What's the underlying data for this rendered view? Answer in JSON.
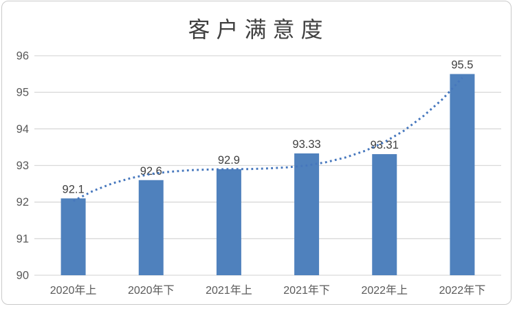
{
  "chart_data": {
    "type": "bar",
    "title": "客户满意度",
    "categories": [
      "2020年上",
      "2020年下",
      "2021年上",
      "2021年下",
      "2022年上",
      "2022年下"
    ],
    "values": [
      92.1,
      92.6,
      92.9,
      93.33,
      93.31,
      95.5
    ],
    "value_labels": [
      "92.1",
      "92.6",
      "92.9",
      "93.33",
      "93.31",
      "95.5"
    ],
    "y_ticks": [
      96,
      95,
      94,
      93,
      92,
      91,
      90
    ],
    "ylim": [
      90,
      96
    ],
    "xlabel": "",
    "ylabel": "",
    "grid": "horizontal",
    "legend": "none",
    "trendline": {
      "type": "polynomial-order-3",
      "style": "dotted",
      "x_start_category": 0,
      "x_end_category": 5,
      "sample_values": [
        92.03,
        92.3,
        92.51,
        92.66,
        92.77,
        92.83,
        92.87,
        92.89,
        92.9,
        92.9,
        92.92,
        92.95,
        93.0,
        93.09,
        93.22,
        93.4,
        93.64,
        93.95,
        94.35,
        94.82,
        95.4
      ]
    },
    "colors": {
      "bar": "#4f81bd",
      "trendline": "#4677bd",
      "gridline": "#d9d9d9",
      "axis_text": "#595959",
      "value_label_text": "#404040",
      "title_text": "#404040",
      "frame_border": "#c9c9c9",
      "background": "#ffffff"
    }
  }
}
